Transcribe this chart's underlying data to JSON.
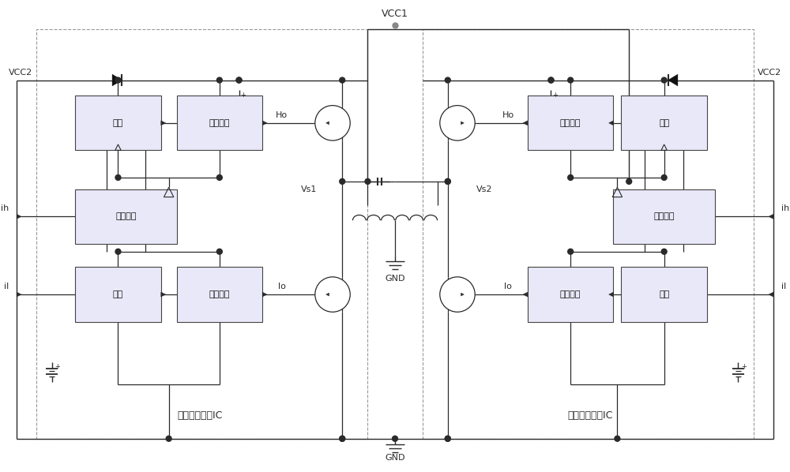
{
  "bg_color": "#ffffff",
  "line_color": "#2a2a2a",
  "box_fill": "#e8e8f8",
  "box_edge": "#444444",
  "labels": {
    "VCC1": "VCC1",
    "VCC2_left": "VCC2",
    "VCC2_right": "VCC2",
    "GND_center": "GND",
    "GND_bottom": "GND",
    "Vs1": "Vs1",
    "Vs2": "Vs2",
    "Ho_left": "Ho",
    "Ho_right": "Ho",
    "Lo_left": "lo",
    "Lo_right": "lo",
    "ih_left": "ih",
    "ih_right": "ih",
    "il_left": "il",
    "il_right": "il",
    "ic_left": "半桥自举驱动IC",
    "ic_right": "半桥自举驱动IC",
    "amp1_left": "放大",
    "pamp1_left": "功率放大",
    "level_left": "电平移位",
    "amp2_left": "放大",
    "pamp2_left": "功率放大",
    "amp1_right": "放大",
    "pamp1_right": "功率放大",
    "level_right": "电平移位",
    "amp2_right": "放大",
    "pamp2_right": "功率放大"
  }
}
